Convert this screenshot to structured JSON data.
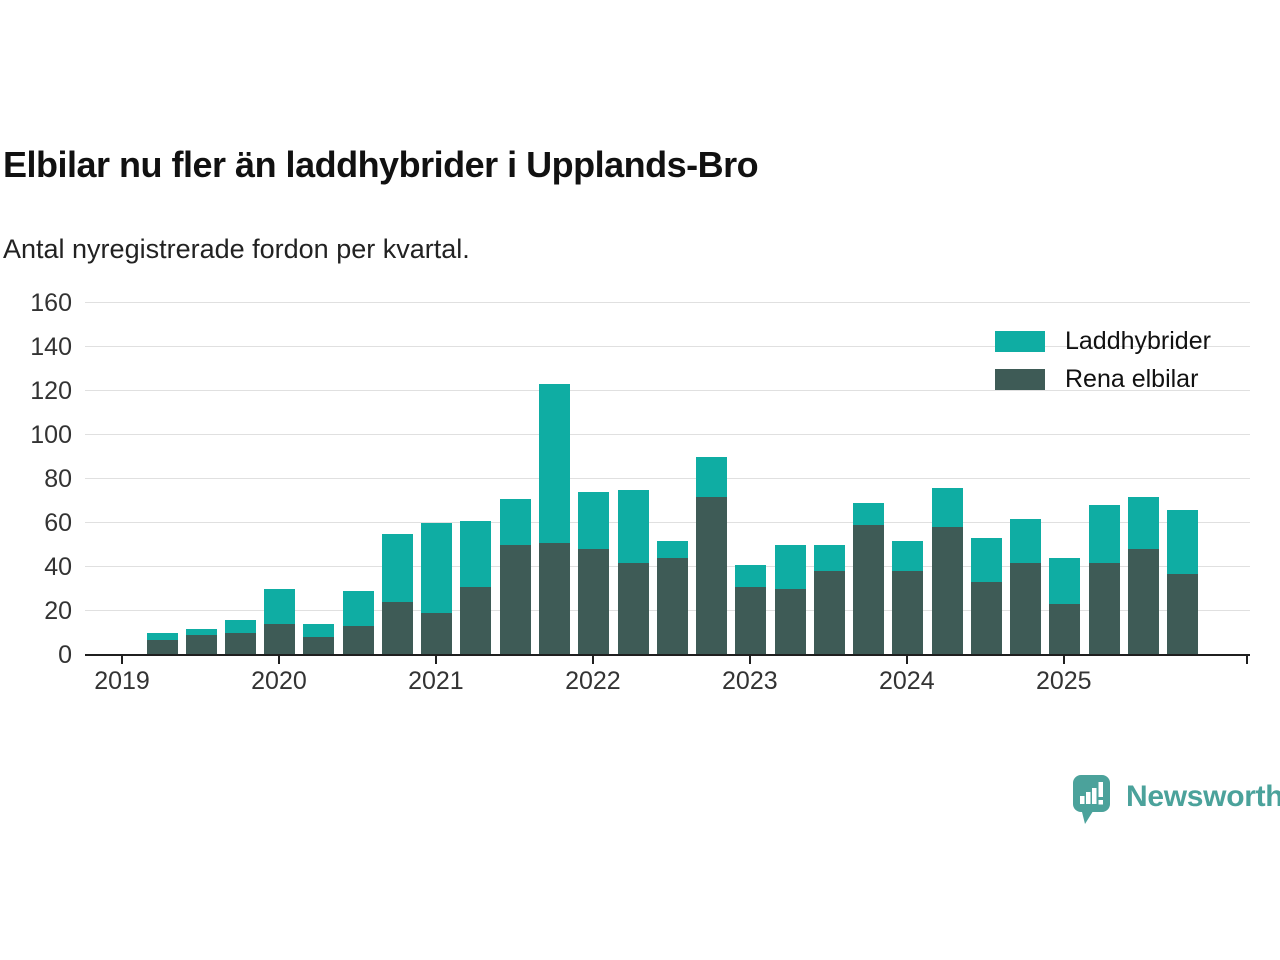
{
  "title": "Elbilar nu fler än laddhybrider i Upplands-Bro",
  "subtitle": "Antal nyregistrerade fordon per kvartal.",
  "legend": [
    {
      "label": "Laddhybrider",
      "color": "#0fada3"
    },
    {
      "label": "Rena elbilar",
      "color": "#3e5b56"
    }
  ],
  "colors": {
    "laddhybrider": "#0fada3",
    "rena_elbilar": "#3e5b56",
    "gridline": "#e0e0e0",
    "axis": "#1f1f1f",
    "brand": "#4ba29b"
  },
  "brand": {
    "name": "Newsworthy"
  },
  "chart_data": {
    "type": "bar",
    "stacked": true,
    "title": "Elbilar nu fler än laddhybrider i Upplands-Bro",
    "subtitle": "Antal nyregistrerade fordon per kvartal.",
    "xlabel": "",
    "ylabel": "",
    "ylim": [
      0,
      160
    ],
    "y_ticks": [
      0,
      20,
      40,
      60,
      80,
      100,
      120,
      140,
      160
    ],
    "x_year_ticks": [
      "2019",
      "2020",
      "2021",
      "2022",
      "2023",
      "2024",
      "2025"
    ],
    "grid": true,
    "legend_position": "top-right",
    "categories": [
      "2019Q2",
      "2019Q3",
      "2019Q4",
      "2020Q1",
      "2020Q2",
      "2020Q3",
      "2020Q4",
      "2021Q1",
      "2021Q2",
      "2021Q3",
      "2021Q4",
      "2022Q1",
      "2022Q2",
      "2022Q3",
      "2022Q4",
      "2023Q1",
      "2023Q2",
      "2023Q3",
      "2023Q4",
      "2024Q1",
      "2024Q2",
      "2024Q3",
      "2024Q4",
      "2025Q1",
      "2025Q2",
      "2025Q3",
      "2025Q4"
    ],
    "series": [
      {
        "name": "Rena elbilar",
        "color": "#3e5b56",
        "values": [
          7,
          9,
          10,
          14,
          8,
          13,
          24,
          19,
          31,
          50,
          51,
          48,
          42,
          44,
          72,
          31,
          30,
          38,
          59,
          38,
          58,
          33,
          42,
          23,
          42,
          48,
          37
        ]
      },
      {
        "name": "Laddhybrider",
        "color": "#0fada3",
        "values": [
          3,
          3,
          6,
          16,
          6,
          16,
          31,
          41,
          30,
          21,
          72,
          26,
          33,
          8,
          18,
          10,
          20,
          12,
          10,
          14,
          18,
          20,
          20,
          21,
          26,
          24,
          29
        ]
      }
    ],
    "totals": [
      10,
      12,
      16,
      30,
      14,
      29,
      55,
      60,
      61,
      71,
      123,
      74,
      75,
      52,
      90,
      41,
      50,
      50,
      69,
      52,
      76,
      53,
      62,
      44,
      68,
      72,
      66
    ]
  }
}
